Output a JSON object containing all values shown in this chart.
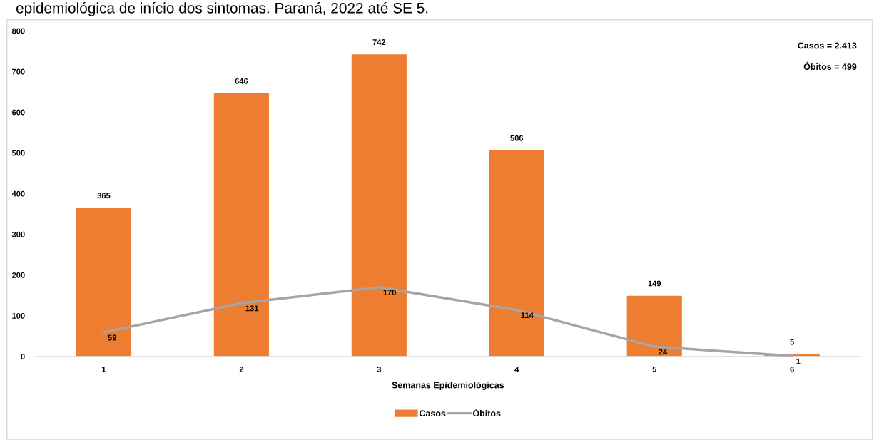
{
  "chart_data": {
    "type": "bar",
    "title": "epidemiológica de início dos sintomas. Paraná, 2022 até SE 5.",
    "xlabel": "Semanas Epidemiológicas",
    "categories": [
      "1",
      "2",
      "3",
      "4",
      "5",
      "6"
    ],
    "series": [
      {
        "name": "Casos",
        "color": "#ed7d31",
        "values": [
          365,
          646,
          742,
          506,
          149,
          5
        ]
      },
      {
        "name": "Óbitos",
        "type": "line",
        "color": "#a5a5a5",
        "values": [
          59,
          131,
          170,
          114,
          24,
          1
        ]
      }
    ],
    "ylim": [
      0,
      800
    ],
    "yticks": [
      0,
      100,
      200,
      300,
      400,
      500,
      600,
      700,
      800
    ],
    "data_labels": true,
    "grid": false,
    "legend": "bottom",
    "marker": "none",
    "annotations": [
      "Casos = 2.413",
      "Óbitos = 499"
    ]
  }
}
